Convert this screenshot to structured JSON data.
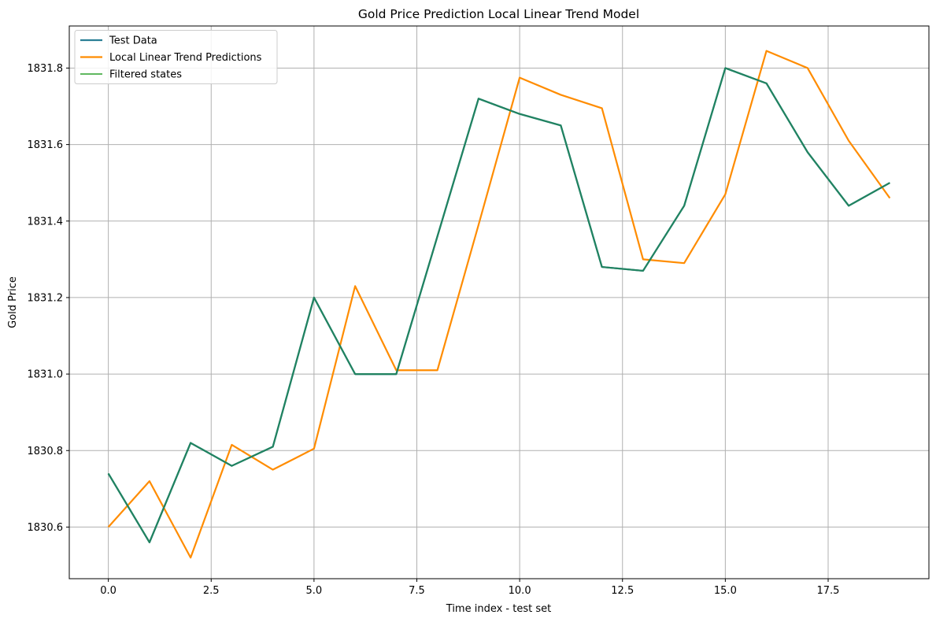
{
  "chart_data": {
    "type": "line",
    "title": "Gold Price Prediction Local Linear Trend Model",
    "xlabel": "Time index - test set",
    "ylabel": "Gold Price",
    "xlim": [
      -0.95,
      19.95
    ],
    "ylim": [
      1830.465,
      1831.91
    ],
    "xticks": [
      0.0,
      2.5,
      5.0,
      7.5,
      10.0,
      12.5,
      15.0,
      17.5
    ],
    "xtick_labels": [
      "0.0",
      "2.5",
      "5.0",
      "7.5",
      "10.0",
      "12.5",
      "15.0",
      "17.5"
    ],
    "yticks": [
      1830.6,
      1830.8,
      1831.0,
      1831.2,
      1831.4,
      1831.6,
      1831.8
    ],
    "ytick_labels": [
      "1830.6",
      "1830.8",
      "1831.0",
      "1831.2",
      "1831.4",
      "1831.6",
      "1831.8"
    ],
    "grid": true,
    "legend_position": "top-left",
    "x": [
      0,
      1,
      2,
      3,
      4,
      5,
      6,
      7,
      8,
      9,
      10,
      11,
      12,
      13,
      14,
      15,
      16,
      17,
      18,
      19
    ],
    "series": [
      {
        "name": "Test Data",
        "color": "#2b7f96",
        "values": [
          1830.74,
          1830.56,
          1830.82,
          1830.76,
          1830.81,
          1831.2,
          1831.0,
          1831.0,
          1831.36,
          1831.72,
          1831.68,
          1831.65,
          1831.28,
          1831.27,
          1831.44,
          1831.8,
          1831.76,
          1831.58,
          1831.44,
          1831.5
        ]
      },
      {
        "name": "Local Linear Trend Predictions",
        "color": "#ff8c00",
        "values": [
          1830.6,
          1830.72,
          1830.52,
          1830.815,
          1830.75,
          1830.805,
          1831.23,
          1831.01,
          1831.01,
          1831.39,
          1831.775,
          1831.73,
          1831.695,
          1831.3,
          1831.29,
          1831.47,
          1831.845,
          1831.8,
          1831.61,
          1831.46
        ]
      },
      {
        "name": "Filtered states",
        "color": "#2ca02c",
        "values": [
          1830.74,
          1830.56,
          1830.82,
          1830.76,
          1830.81,
          1831.2,
          1831.0,
          1831.0,
          1831.36,
          1831.72,
          1831.68,
          1831.65,
          1831.28,
          1831.27,
          1831.44,
          1831.8,
          1831.76,
          1831.58,
          1831.44,
          1831.5
        ]
      }
    ]
  }
}
